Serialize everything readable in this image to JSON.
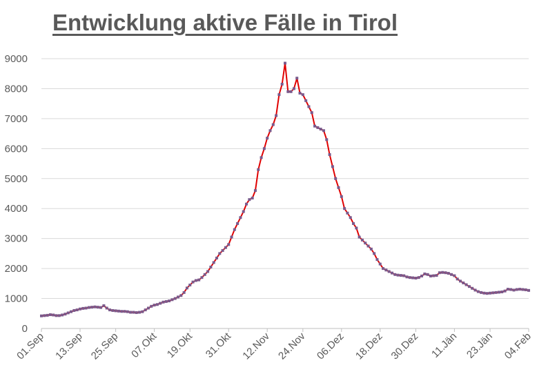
{
  "chart_data": {
    "type": "line",
    "title": "Entwicklung aktive Fälle in Tirol",
    "xlabel": "",
    "ylabel": "",
    "ylim": [
      0,
      9000
    ],
    "yticks": [
      0,
      1000,
      2000,
      3000,
      4000,
      5000,
      6000,
      7000,
      8000,
      9000
    ],
    "xticks": [
      "01.Sep",
      "13.Sep",
      "25.Sep",
      "07.Okt",
      "19.Okt",
      "31.Okt",
      "12.Nov",
      "24.Nov",
      "06.Dez",
      "18.Dez",
      "30.Dez",
      "11.Jän",
      "23.Jän",
      "04.Feb"
    ],
    "grid": "horizontal",
    "line_color": "#e00000",
    "marker_color": "#7a5a8c",
    "series": [
      {
        "values": [
          420,
          430,
          440,
          460,
          450,
          430,
          430,
          450,
          480,
          520,
          560,
          600,
          620,
          650,
          670,
          680,
          700,
          710,
          720,
          710,
          700,
          760,
          680,
          620,
          600,
          590,
          580,
          570,
          570,
          560,
          540,
          540,
          530,
          540,
          560,
          620,
          680,
          740,
          780,
          800,
          840,
          880,
          900,
          920,
          960,
          1000,
          1050,
          1100,
          1200,
          1350,
          1450,
          1550,
          1600,
          1620,
          1700,
          1800,
          1900,
          2050,
          2200,
          2350,
          2500,
          2600,
          2700,
          2800,
          3050,
          3300,
          3500,
          3700,
          3900,
          4150,
          4300,
          4350,
          4600,
          5300,
          5700,
          6000,
          6350,
          6600,
          6800,
          7100,
          7800,
          8150,
          8850,
          7900,
          7900,
          8000,
          8350,
          7850,
          7800,
          7600,
          7400,
          7200,
          6750,
          6700,
          6650,
          6600,
          6300,
          5800,
          5400,
          5000,
          4700,
          4400,
          4000,
          3850,
          3700,
          3500,
          3350,
          3050,
          2950,
          2850,
          2750,
          2650,
          2500,
          2300,
          2150,
          2000,
          1950,
          1900,
          1850,
          1800,
          1780,
          1770,
          1760,
          1720,
          1700,
          1690,
          1680,
          1700,
          1750,
          1820,
          1800,
          1750,
          1760,
          1770,
          1860,
          1870,
          1860,
          1840,
          1800,
          1760,
          1650,
          1580,
          1520,
          1460,
          1400,
          1340,
          1280,
          1230,
          1200,
          1180,
          1170,
          1180,
          1190,
          1200,
          1210,
          1220,
          1250,
          1310,
          1300,
          1280,
          1300,
          1310,
          1300,
          1290,
          1270
        ]
      }
    ]
  }
}
